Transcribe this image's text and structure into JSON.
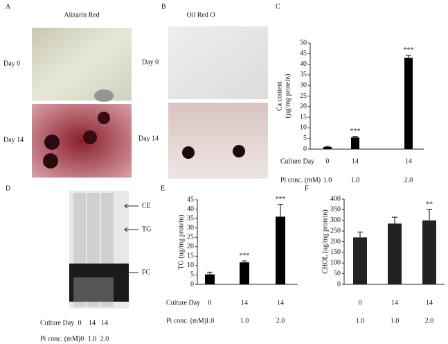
{
  "panels": {
    "a": {
      "letter": "A",
      "title": "Alizarin Red",
      "rows": [
        "Day 0",
        "Day 14"
      ]
    },
    "b": {
      "letter": "B",
      "title": "Oil Red O",
      "rows": [
        "Day 0",
        "Day 14"
      ]
    },
    "d": {
      "letter": "D",
      "bands": [
        "CE",
        "TG",
        "FC"
      ],
      "row_labels": [
        "Culture Day",
        "Pi conc. (mM)"
      ],
      "culture_day": [
        "0",
        "14",
        "14"
      ],
      "pi_conc": [
        "1.0",
        "1.0",
        "2.0"
      ]
    }
  },
  "chart_data": [
    {
      "type": "bar",
      "letter": "C",
      "y_label": [
        "Ca content",
        "(µg/mg protein)"
      ],
      "row_labels": [
        "Culture Day",
        "Pi conc. (mM)"
      ],
      "culture_day": [
        "0",
        "14",
        "14"
      ],
      "pi_conc": [
        "1.0",
        "1.0",
        "2.0"
      ],
      "values": [
        1,
        5.5,
        43
      ],
      "errors": [
        0.3,
        0.5,
        1.2
      ],
      "annotations": [
        null,
        "***",
        "***"
      ],
      "color": "#000000",
      "ylim": [
        0,
        50
      ],
      "yticks": [
        0,
        5,
        10,
        15,
        20,
        25,
        30,
        35,
        40,
        45,
        50
      ]
    },
    {
      "type": "bar",
      "letter": "E",
      "y_label": [
        "TG (ug/mg protein)"
      ],
      "row_labels": [
        "Culture Day",
        "Pi conc. (mM)"
      ],
      "culture_day": [
        "0",
        "14",
        "14"
      ],
      "pi_conc": [
        "1.0",
        "1.0",
        "2.0"
      ],
      "values": [
        5.3,
        11.7,
        36
      ],
      "errors": [
        1.2,
        0.8,
        6.5
      ],
      "annotations": [
        null,
        "***",
        "***"
      ],
      "color": "#000000",
      "ylim": [
        0,
        45
      ],
      "yticks": [
        0,
        5,
        10,
        15,
        20,
        25,
        30,
        35,
        40,
        45
      ]
    },
    {
      "type": "bar",
      "letter": "F",
      "y_label": [
        "CHOL (ug/mg protein)"
      ],
      "culture_day": [
        "0",
        "14",
        "14"
      ],
      "pi_conc": [
        "1.0",
        "1.0",
        "2.0"
      ],
      "values": [
        220,
        285,
        300
      ],
      "errors": [
        25,
        30,
        50
      ],
      "annotations": [
        null,
        null,
        "**"
      ],
      "color": "#222222",
      "ylim": [
        0,
        400
      ],
      "yticks": [
        0,
        50,
        100,
        150,
        200,
        250,
        300,
        350,
        400
      ]
    }
  ]
}
